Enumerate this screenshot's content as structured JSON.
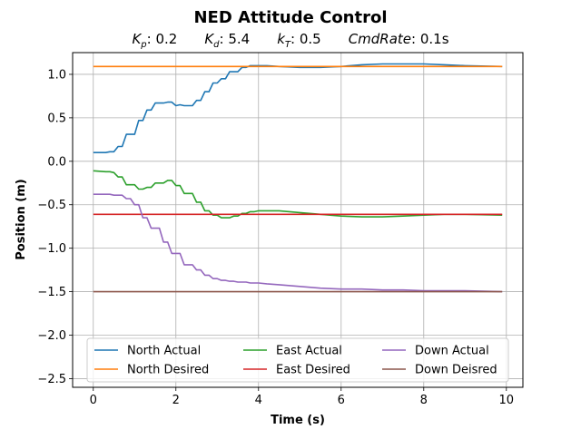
{
  "chart_data": {
    "type": "line",
    "title": "NED Attitude Control",
    "subtitle": {
      "kp_label": "K",
      "kp_sub": "p",
      "kp_value": ":  0.2",
      "kd_label": "K",
      "kd_sub": "d",
      "kd_value": ":  5.4",
      "kt_label": "k",
      "kt_sub": "T",
      "kt_value": ":  0.5",
      "rate_label": "CmdRate",
      "rate_value": ":  0.1s"
    },
    "xlabel": "Time (s)",
    "ylabel": "Position (m)",
    "xlim": [
      -0.5,
      10.4
    ],
    "ylim": [
      -2.6,
      1.25
    ],
    "xticks": [
      0,
      2,
      4,
      6,
      8,
      10
    ],
    "yticks": [
      1.0,
      0.5,
      0.0,
      -0.5,
      -1.0,
      -1.5,
      -2.0,
      -2.5
    ],
    "ytick_labels": [
      "1.0",
      "0.5",
      "0.0",
      "−0.5",
      "−1.0",
      "−1.5",
      "−2.0",
      "−2.5"
    ],
    "grid": true,
    "legend_position": "lower center",
    "series": [
      {
        "name": "North Actual",
        "color": "#1f77b4",
        "x": [
          0,
          0.3,
          0.4,
          0.5,
          0.6,
          0.7,
          0.8,
          0.9,
          1.0,
          1.1,
          1.2,
          1.3,
          1.4,
          1.5,
          1.6,
          1.7,
          1.8,
          1.9,
          2.0,
          2.1,
          2.2,
          2.3,
          2.4,
          2.5,
          2.6,
          2.7,
          2.8,
          2.9,
          3.0,
          3.1,
          3.2,
          3.3,
          3.4,
          3.5,
          3.6,
          3.7,
          3.8,
          3.9,
          4.0,
          4.2,
          4.5,
          5.0,
          5.5,
          6.0,
          6.5,
          7.0,
          7.5,
          8.0,
          8.5,
          9.0,
          9.9
        ],
        "y": [
          0.1,
          0.1,
          0.11,
          0.11,
          0.17,
          0.17,
          0.31,
          0.31,
          0.31,
          0.47,
          0.47,
          0.59,
          0.59,
          0.67,
          0.67,
          0.67,
          0.68,
          0.68,
          0.64,
          0.65,
          0.64,
          0.64,
          0.64,
          0.7,
          0.7,
          0.8,
          0.8,
          0.9,
          0.9,
          0.95,
          0.95,
          1.03,
          1.03,
          1.03,
          1.08,
          1.08,
          1.1,
          1.1,
          1.1,
          1.1,
          1.09,
          1.08,
          1.08,
          1.09,
          1.11,
          1.12,
          1.12,
          1.12,
          1.11,
          1.1,
          1.09
        ]
      },
      {
        "name": "North Desired",
        "color": "#ff7f0e",
        "x": [
          0,
          9.9
        ],
        "y": [
          1.09,
          1.09
        ]
      },
      {
        "name": "East Actual",
        "color": "#2ca02c",
        "x": [
          0,
          0.3,
          0.4,
          0.5,
          0.6,
          0.7,
          0.8,
          0.9,
          1.0,
          1.1,
          1.2,
          1.3,
          1.4,
          1.5,
          1.6,
          1.7,
          1.8,
          1.9,
          2.0,
          2.1,
          2.2,
          2.3,
          2.4,
          2.5,
          2.6,
          2.7,
          2.8,
          2.9,
          3.0,
          3.1,
          3.2,
          3.3,
          3.4,
          3.5,
          3.6,
          3.7,
          3.8,
          3.9,
          4.0,
          4.2,
          4.5,
          5.0,
          5.5,
          6.0,
          6.5,
          7.0,
          7.5,
          8.0,
          8.5,
          9.0,
          9.9
        ],
        "y": [
          -0.11,
          -0.12,
          -0.12,
          -0.13,
          -0.18,
          -0.18,
          -0.27,
          -0.27,
          -0.27,
          -0.32,
          -0.32,
          -0.3,
          -0.3,
          -0.25,
          -0.25,
          -0.25,
          -0.22,
          -0.22,
          -0.28,
          -0.28,
          -0.37,
          -0.37,
          -0.37,
          -0.47,
          -0.47,
          -0.57,
          -0.57,
          -0.62,
          -0.62,
          -0.65,
          -0.65,
          -0.65,
          -0.63,
          -0.63,
          -0.6,
          -0.6,
          -0.58,
          -0.58,
          -0.57,
          -0.57,
          -0.57,
          -0.59,
          -0.61,
          -0.63,
          -0.64,
          -0.64,
          -0.63,
          -0.62,
          -0.61,
          -0.61,
          -0.62
        ]
      },
      {
        "name": "East Desired",
        "color": "#d62728",
        "x": [
          0,
          9.9
        ],
        "y": [
          -0.61,
          -0.61
        ]
      },
      {
        "name": "Down Actual",
        "color": "#9467bd",
        "x": [
          0,
          0.3,
          0.4,
          0.5,
          0.6,
          0.7,
          0.8,
          0.9,
          1.0,
          1.1,
          1.2,
          1.3,
          1.4,
          1.5,
          1.6,
          1.7,
          1.8,
          1.9,
          2.0,
          2.1,
          2.2,
          2.3,
          2.4,
          2.5,
          2.6,
          2.7,
          2.8,
          2.9,
          3.0,
          3.1,
          3.2,
          3.3,
          3.4,
          3.5,
          3.6,
          3.7,
          3.8,
          3.9,
          4.0,
          4.2,
          4.5,
          5.0,
          5.5,
          6.0,
          6.5,
          7.0,
          7.5,
          8.0,
          8.5,
          9.0,
          9.9
        ],
        "y": [
          -0.38,
          -0.38,
          -0.38,
          -0.39,
          -0.39,
          -0.39,
          -0.43,
          -0.43,
          -0.5,
          -0.5,
          -0.65,
          -0.65,
          -0.77,
          -0.77,
          -0.77,
          -0.93,
          -0.93,
          -1.06,
          -1.06,
          -1.06,
          -1.19,
          -1.19,
          -1.19,
          -1.25,
          -1.25,
          -1.31,
          -1.31,
          -1.35,
          -1.35,
          -1.37,
          -1.37,
          -1.38,
          -1.38,
          -1.39,
          -1.39,
          -1.39,
          -1.4,
          -1.4,
          -1.4,
          -1.41,
          -1.42,
          -1.44,
          -1.46,
          -1.47,
          -1.47,
          -1.48,
          -1.48,
          -1.49,
          -1.49,
          -1.49,
          -1.5
        ]
      },
      {
        "name": "Down Deisred",
        "color": "#8c564b",
        "x": [
          0,
          9.9
        ],
        "y": [
          -1.5,
          -1.5
        ]
      }
    ]
  }
}
